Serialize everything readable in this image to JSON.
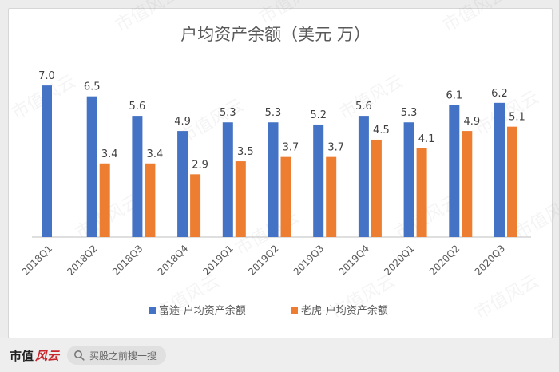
{
  "chart_data": {
    "type": "bar",
    "title": "户均资产余额（美元 万）",
    "categories": [
      "2018Q1",
      "2018Q2",
      "2018Q3",
      "2018Q4",
      "2019Q1",
      "2019Q2",
      "2019Q3",
      "2019Q4",
      "2020Q1",
      "2020Q2",
      "2020Q3"
    ],
    "series": [
      {
        "name": "富途-户均资产余额",
        "color": "#4472c4",
        "values": [
          7.0,
          6.5,
          5.6,
          4.9,
          5.3,
          5.3,
          5.2,
          5.6,
          5.3,
          6.1,
          6.2
        ]
      },
      {
        "name": "老虎-户均资产余额",
        "color": "#ed7d31",
        "values": [
          null,
          3.4,
          3.4,
          2.9,
          3.5,
          3.7,
          3.7,
          4.5,
          4.1,
          4.9,
          5.1
        ]
      }
    ],
    "ylim": [
      0,
      8
    ],
    "grid": false,
    "legend": "bottom"
  },
  "watermark": {
    "text": "市值风云"
  },
  "footer": {
    "brand_text": "市值",
    "brand_logo": "风云",
    "search_icon": "search-icon",
    "search_text": "买股之前搜一搜"
  }
}
